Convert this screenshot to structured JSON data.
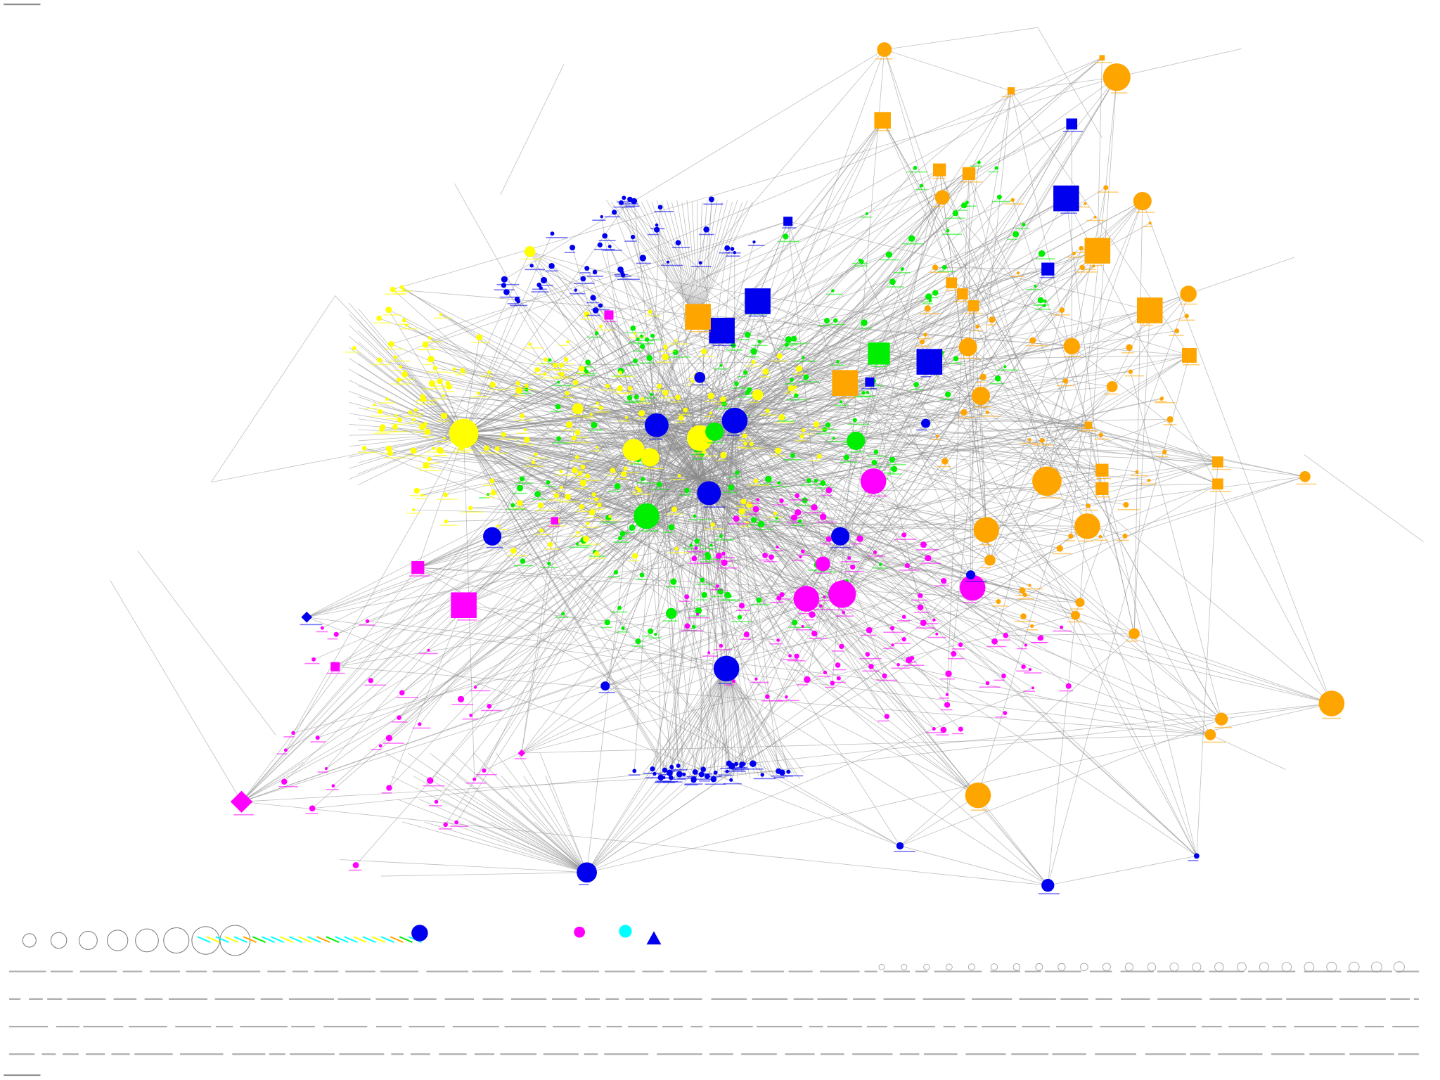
{
  "colors": {
    "group_1": "#ffa500",
    "group_2": "#0000ee",
    "group_3": "#ffff00",
    "group_4": "#00ee00",
    "group_5": "#ff00ff",
    "group_6": "#00ffff",
    "edge": "#8a8a8a"
  },
  "shapes": [
    "circle",
    "square",
    "diamond",
    "triangle"
  ],
  "legend": {
    "sizes": [
      1,
      2,
      3,
      4,
      5,
      6,
      7,
      8
    ],
    "colors": [
      "#0000ee",
      "#ff00ff",
      "#00ffff",
      "#0000ee"
    ]
  }
}
